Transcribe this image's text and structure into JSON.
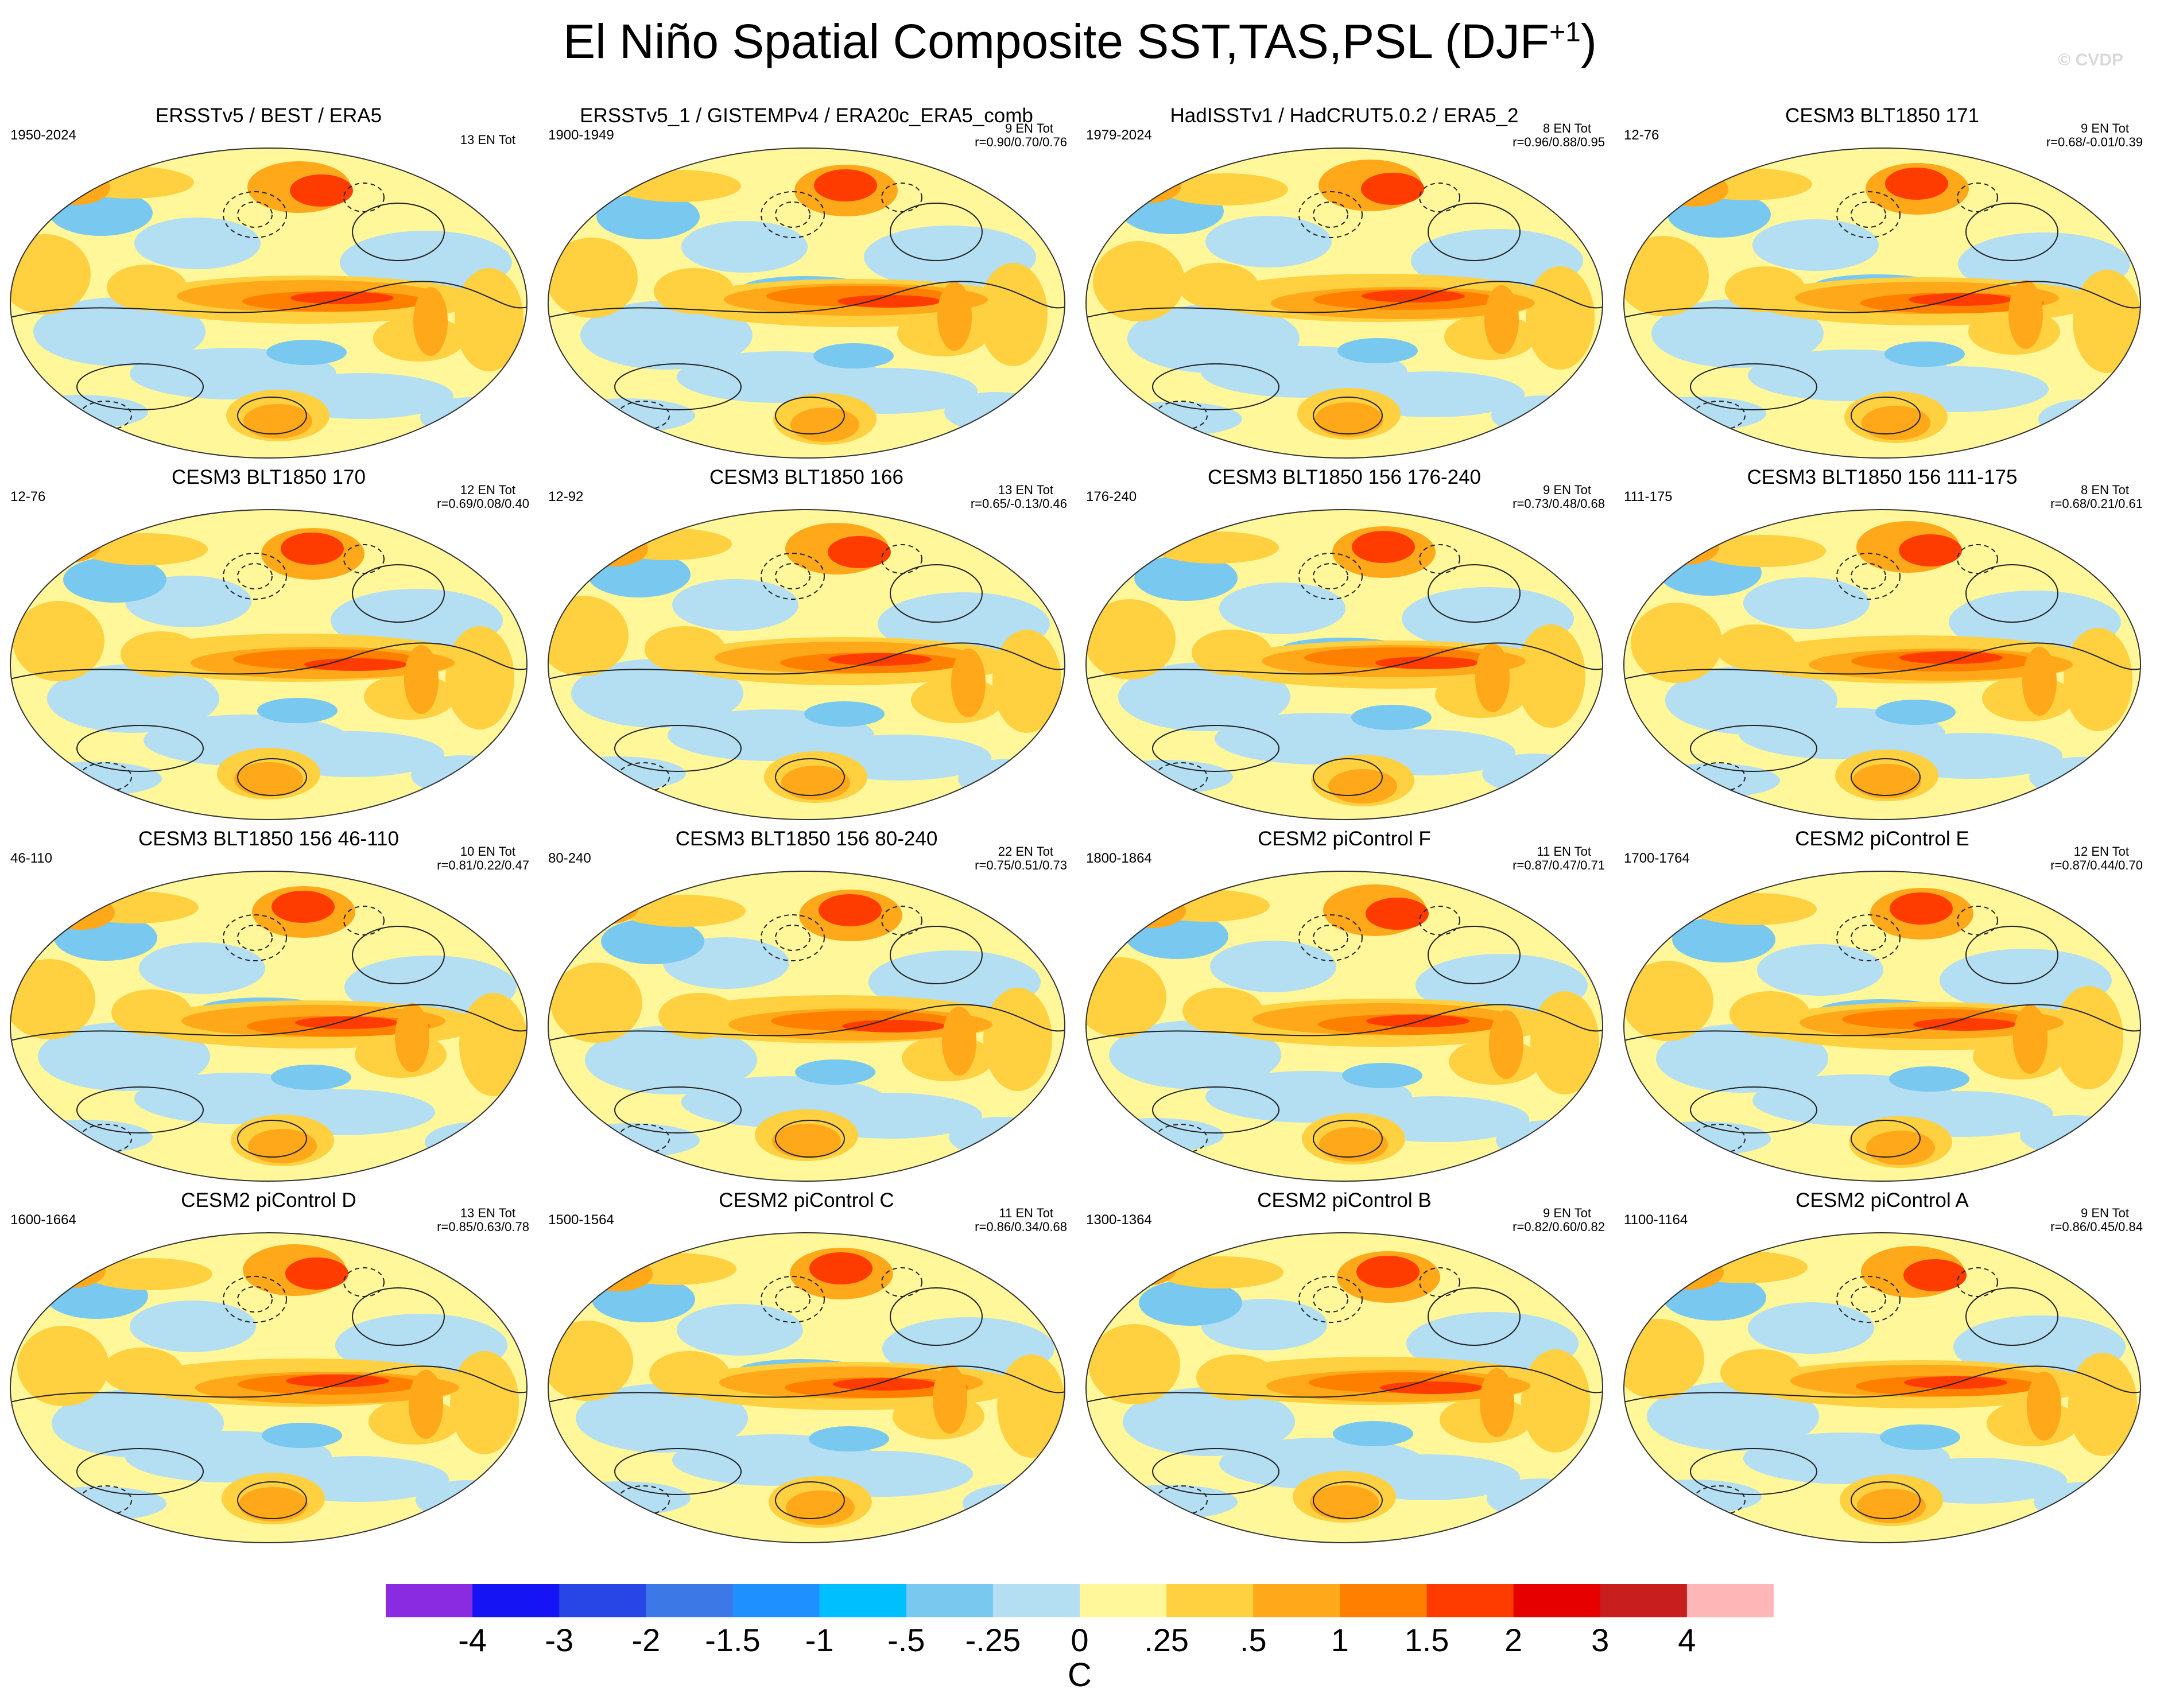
{
  "figure": {
    "title": "El Niño Spatial Composite SST,TAS,PSL (DJF",
    "title_superscript": "+1",
    "title_close": ")",
    "watermark": "© CVDP"
  },
  "panels": [
    {
      "title": "ERSSTv5 / BEST / ERA5",
      "period": "1950-2024",
      "events": "13 EN Tot",
      "corr": ""
    },
    {
      "title": "ERSSTv5_1 / GISTEMPv4 / ERA20c_ERA5_comb",
      "period": "1900-1949",
      "events": "9 EN Tot",
      "corr": "r=0.90/0.70/0.76"
    },
    {
      "title": "HadISSTv1 / HadCRUT5.0.2 / ERA5_2",
      "period": "1979-2024",
      "events": "8 EN Tot",
      "corr": "r=0.96/0.88/0.95"
    },
    {
      "title": "CESM3 BLT1850 171",
      "period": "12-76",
      "events": "9 EN Tot",
      "corr": "r=0.68/-0.01/0.39"
    },
    {
      "title": "CESM3 BLT1850 170",
      "period": "12-76",
      "events": "12 EN Tot",
      "corr": "r=0.69/0.08/0.40"
    },
    {
      "title": "CESM3 BLT1850 166",
      "period": "12-92",
      "events": "13 EN Tot",
      "corr": "r=0.65/-0.13/0.46"
    },
    {
      "title": "CESM3 BLT1850 156 176-240",
      "period": "176-240",
      "events": "9 EN Tot",
      "corr": "r=0.73/0.48/0.68"
    },
    {
      "title": "CESM3 BLT1850 156 111-175",
      "period": "111-175",
      "events": "8 EN Tot",
      "corr": "r=0.68/0.21/0.61"
    },
    {
      "title": "CESM3 BLT1850 156 46-110",
      "period": "46-110",
      "events": "10 EN Tot",
      "corr": "r=0.81/0.22/0.47"
    },
    {
      "title": "CESM3 BLT1850 156 80-240",
      "period": "80-240",
      "events": "22 EN Tot",
      "corr": "r=0.75/0.51/0.73"
    },
    {
      "title": "CESM2 piControl F",
      "period": "1800-1864",
      "events": "11 EN Tot",
      "corr": "r=0.87/0.47/0.71"
    },
    {
      "title": "CESM2 piControl E",
      "period": "1700-1764",
      "events": "12 EN Tot",
      "corr": "r=0.87/0.44/0.70"
    },
    {
      "title": "CESM2 piControl D",
      "period": "1600-1664",
      "events": "13 EN Tot",
      "corr": "r=0.85/0.63/0.78"
    },
    {
      "title": "CESM2 piControl C",
      "period": "1500-1564",
      "events": "11 EN Tot",
      "corr": "r=0.86/0.34/0.68"
    },
    {
      "title": "CESM2 piControl B",
      "period": "1300-1364",
      "events": "9 EN Tot",
      "corr": "r=0.82/0.60/0.82"
    },
    {
      "title": "CESM2 piControl A",
      "period": "1100-1164",
      "events": "9 EN Tot",
      "corr": "r=0.86/0.45/0.84"
    }
  ],
  "colorbar": {
    "colors": [
      "#8a2be2",
      "#1414f5",
      "#2846e6",
      "#3c78e6",
      "#1e90ff",
      "#00bfff",
      "#78c8f0",
      "#b4def2",
      "#fff79a",
      "#ffd040",
      "#ffa81a",
      "#ff8000",
      "#ff3c00",
      "#e60000",
      "#c81e1e",
      "#ffb6b6"
    ],
    "labels": [
      "-4",
      "-3",
      "-2",
      "-1.5",
      "-1",
      "-.5",
      "-.25",
      "0",
      ".25",
      ".5",
      "1",
      "1.5",
      "2",
      "3",
      "4"
    ],
    "unit": "C"
  },
  "map_colors": {
    "base": "#fff79a",
    "cool_light": "#b4def2",
    "cool_mid": "#78c8f0",
    "cool_strong": "#1e90ff",
    "cool_deep": "#2846e6",
    "warm_light": "#ffd040",
    "warm_mid": "#ffa81a",
    "warm_strong": "#ff8000",
    "warm_deep": "#ff3c00",
    "warm_max": "#e60000"
  }
}
